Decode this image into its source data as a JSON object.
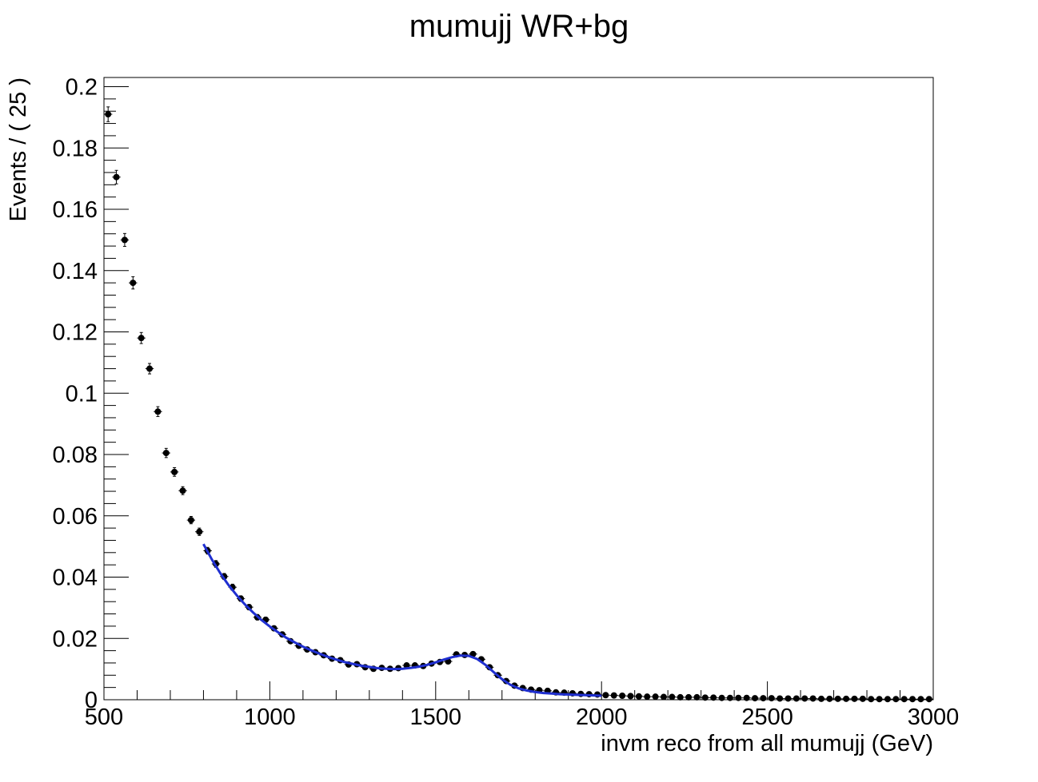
{
  "chart_data": {
    "type": "scatter",
    "title": "mumujj WR+bg",
    "xlabel": "invm reco from all mumujj (GeV)",
    "ylabel": "Events / ( 25 )",
    "xlim": [
      500,
      3000
    ],
    "ylim": [
      0,
      0.203
    ],
    "x_ticks": [
      "500",
      "1000",
      "1500",
      "2000",
      "2500",
      "3000"
    ],
    "y_ticks": [
      "0",
      "0.02",
      "0.04",
      "0.06",
      "0.08",
      "0.1",
      "0.12",
      "0.14",
      "0.16",
      "0.18",
      "0.2"
    ],
    "grid": false,
    "series": [
      {
        "style": "points-with-errors",
        "color": "#000000",
        "x_error": 12.5,
        "x": [
          512.5,
          537.5,
          562.5,
          587.5,
          612.5,
          637.5,
          662.5,
          687.5,
          712.5,
          737.5,
          762.5,
          787.5,
          812.5,
          837.5,
          862.5,
          887.5,
          912.5,
          937.5,
          962.5,
          987.5,
          1012.5,
          1037.5,
          1062.5,
          1087.5,
          1112.5,
          1137.5,
          1162.5,
          1187.5,
          1212.5,
          1237.5,
          1262.5,
          1287.5,
          1312.5,
          1337.5,
          1362.5,
          1387.5,
          1412.5,
          1437.5,
          1462.5,
          1487.5,
          1512.5,
          1537.5,
          1562.5,
          1587.5,
          1612.5,
          1637.5,
          1662.5,
          1687.5,
          1712.5,
          1737.5,
          1762.5,
          1787.5,
          1812.5,
          1837.5,
          1862.5,
          1887.5,
          1912.5,
          1937.5,
          1962.5,
          1987.5,
          2012.5,
          2037.5,
          2062.5,
          2087.5,
          2112.5,
          2137.5,
          2162.5,
          2187.5,
          2212.5,
          2237.5,
          2262.5,
          2287.5,
          2312.5,
          2337.5,
          2362.5,
          2387.5,
          2412.5,
          2437.5,
          2462.5,
          2487.5,
          2512.5,
          2537.5,
          2562.5,
          2587.5,
          2612.5,
          2637.5,
          2662.5,
          2687.5,
          2712.5,
          2737.5,
          2762.5,
          2787.5,
          2812.5,
          2837.5,
          2862.5,
          2887.5,
          2912.5,
          2937.5,
          2962.5,
          2987.5
        ],
        "y": [
          0.191,
          0.1705,
          0.15,
          0.136,
          0.118,
          0.108,
          0.094,
          0.0805,
          0.0743,
          0.0682,
          0.0586,
          0.0548,
          0.0486,
          0.0443,
          0.0402,
          0.0367,
          0.033,
          0.0302,
          0.0269,
          0.0261,
          0.0233,
          0.0213,
          0.0191,
          0.0176,
          0.0164,
          0.0155,
          0.0145,
          0.0134,
          0.0129,
          0.0115,
          0.0116,
          0.0106,
          0.0101,
          0.0104,
          0.0101,
          0.0103,
          0.0112,
          0.0112,
          0.011,
          0.0118,
          0.0123,
          0.0125,
          0.0148,
          0.0146,
          0.0149,
          0.0132,
          0.0106,
          0.008,
          0.0061,
          0.0046,
          0.0038,
          0.0033,
          0.0031,
          0.0029,
          0.0024,
          0.0023,
          0.0021,
          0.0019,
          0.0018,
          0.0017,
          0.0015,
          0.0014,
          0.0013,
          0.0012,
          0.0011,
          0.001,
          0.001,
          0.0009,
          0.0009,
          0.0008,
          0.0008,
          0.0008,
          0.0007,
          0.0007,
          0.0006,
          0.0006,
          0.0006,
          0.0006,
          0.0005,
          0.0005,
          0.0005,
          0.0004,
          0.0004,
          0.0004,
          0.0004,
          0.0004,
          0.0003,
          0.0003,
          0.0003,
          0.0003,
          0.0003,
          0.0003,
          0.0002,
          0.0002,
          0.0002,
          0.0002,
          0.0002,
          0.0002,
          0.0002,
          0.0002
        ],
        "y_error": [
          0.0024,
          0.0022,
          0.0021,
          0.002,
          0.0018,
          0.0017,
          0.0016,
          0.0015,
          0.0014,
          0.0013,
          0.0012,
          0.0012,
          0.0011,
          0.0011,
          0.001,
          0.001,
          0.0009,
          0.0009,
          0.0009,
          0.0008,
          0.0008,
          0.0008,
          0.0007,
          0.0007,
          0.0007,
          0.0006,
          0.0006,
          0.0006,
          0.0006,
          0.0006,
          0.0006,
          0.0005,
          0.0005,
          0.0005,
          0.0005,
          0.0005,
          0.0005,
          0.0005,
          0.0005,
          0.0005,
          0.0005,
          0.0005,
          0.0006,
          0.0006,
          0.0006,
          0.0006,
          0.0005,
          0.0004,
          0.0004,
          0.0003,
          0.0003,
          0.0003,
          0.0003,
          0.0003,
          0.0002,
          0.0002,
          0.0002,
          0.0002,
          0.0002,
          0.0002,
          0.0002,
          0.0002,
          0.0002,
          0.0002,
          0.0002,
          0.0002,
          0.0002,
          0.0002,
          0.0002,
          0.0001,
          0.0001,
          0.0001,
          0.0001,
          0.0001,
          0.0001,
          0.0001,
          0.0001,
          0.0001,
          0.0001,
          0.0001,
          0.0001,
          0.0001,
          0.0001,
          0.0001,
          0.0001,
          0.0001,
          0.0001,
          0.0001,
          0.0001,
          0.0001,
          0.0001,
          0.0001,
          0.0001,
          0.0001,
          0.0001,
          0.0001,
          0.0001,
          0.0001,
          0.0001,
          0.0001
        ]
      },
      {
        "style": "curve",
        "color": "#1f2fd0",
        "x": [
          800,
          825,
          850,
          875,
          900,
          925,
          950,
          975,
          1000,
          1025,
          1050,
          1075,
          1100,
          1125,
          1150,
          1175,
          1200,
          1225,
          1250,
          1275,
          1300,
          1325,
          1350,
          1375,
          1400,
          1425,
          1450,
          1475,
          1500,
          1525,
          1550,
          1575,
          1600,
          1625,
          1650,
          1675,
          1700,
          1725,
          1750,
          1775,
          1800,
          1825,
          1850,
          1875,
          1900,
          1925,
          1950,
          1975,
          2000
        ],
        "y": [
          0.0508,
          0.0458,
          0.0414,
          0.0375,
          0.0341,
          0.0311,
          0.0284,
          0.026,
          0.0239,
          0.022,
          0.0202,
          0.0187,
          0.0173,
          0.0161,
          0.015,
          0.014,
          0.0131,
          0.0123,
          0.0117,
          0.0111,
          0.0107,
          0.0103,
          0.0101,
          0.01,
          0.0101,
          0.0104,
          0.0108,
          0.0114,
          0.0122,
          0.0131,
          0.0139,
          0.0144,
          0.0143,
          0.0133,
          0.0114,
          0.009,
          0.0067,
          0.0049,
          0.0037,
          0.003,
          0.0025,
          0.0022,
          0.002,
          0.0018,
          0.0017,
          0.0016,
          0.0015,
          0.0014,
          0.0013
        ]
      }
    ]
  }
}
